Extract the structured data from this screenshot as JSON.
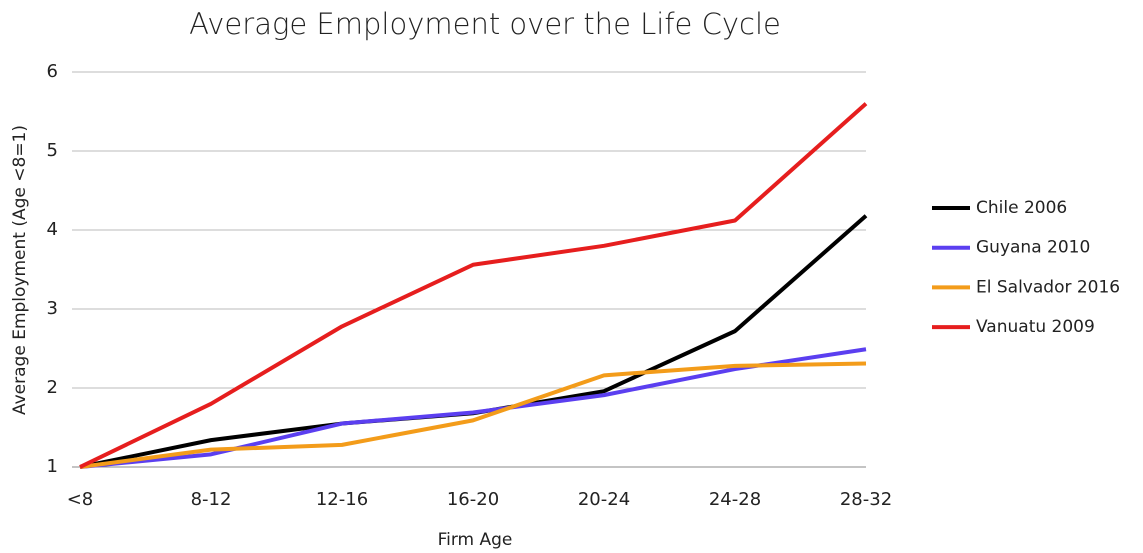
{
  "chart_data": {
    "type": "line",
    "title": "Average Employment over the Life Cycle",
    "x_label": "Firm Age",
    "y_label": "Average Employment (Age <8=1)",
    "categories": [
      "<8",
      "8-12",
      "12-16",
      "16-20",
      "20-24",
      "24-28",
      "28-32"
    ],
    "series": [
      {
        "name": "Chile 2006",
        "color": "#000000",
        "values": [
          1,
          1.34,
          1.55,
          1.68,
          1.96,
          2.72,
          4.18
        ]
      },
      {
        "name": "Guyana 2010",
        "color": "#5b3ff0",
        "values": [
          1,
          1.16,
          1.55,
          1.69,
          1.91,
          2.24,
          2.49
        ]
      },
      {
        "name": "El Salvador 2016",
        "color": "#f39c1a",
        "values": [
          1,
          1.22,
          1.28,
          1.59,
          2.16,
          2.28,
          2.31
        ]
      },
      {
        "name": "Vanuatu 2009",
        "color": "#e61e1e",
        "values": [
          1,
          1.8,
          2.78,
          3.56,
          3.8,
          4.12,
          5.6
        ]
      }
    ],
    "ylim": [
      1,
      6
    ],
    "yticks": [
      1,
      2,
      3,
      4,
      5,
      6
    ],
    "grid": true,
    "legend": "right"
  }
}
